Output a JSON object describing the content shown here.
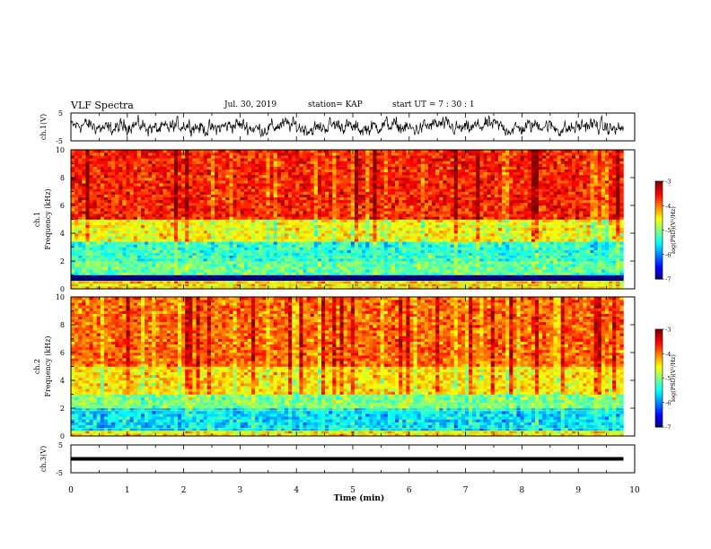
{
  "header": {
    "title": "VLF Spectra",
    "date": "Jul. 30, 2019",
    "station": "station= KAP",
    "start": "start UT = 7 : 30 : 1"
  },
  "chart_data": [
    {
      "type": "line",
      "ylabel": "ch.1(V)",
      "ylim": [
        -5,
        5
      ],
      "yticks": [
        "5",
        "-5"
      ],
      "x_range_min": [
        0,
        9.8
      ],
      "description_values": "dense noisy waveform oscillating roughly between -4 and 4 V"
    },
    {
      "type": "heatmap",
      "ylabel_channel": "ch.1",
      "ylabel": "Frequency (kHz)",
      "ylim": [
        0,
        10
      ],
      "yticks": [
        "0",
        "2",
        "4",
        "6",
        "8",
        "10"
      ],
      "x_range_min": [
        0,
        9.8
      ],
      "colorbar": {
        "label": "log(PSD)(V²/Hz)",
        "range": [
          -7,
          -3
        ],
        "ticks": [
          "-3",
          "-4",
          "-5",
          "-6",
          "-7"
        ]
      },
      "bands_log_psd": [
        {
          "f": [
            0,
            0.6
          ],
          "level": -4.3
        },
        {
          "f": [
            0.6,
            1.0
          ],
          "level": -7.5
        },
        {
          "f": [
            1.0,
            2.0
          ],
          "level": -5.1
        },
        {
          "f": [
            2.0,
            3.4
          ],
          "level": -5.3
        },
        {
          "f": [
            3.4,
            5.0
          ],
          "level": -4.5
        },
        {
          "f": [
            5.0,
            10.0
          ],
          "level": -3.6
        }
      ]
    },
    {
      "type": "heatmap",
      "ylabel_channel": "ch.2",
      "ylabel": "Frequency (kHz)",
      "ylim": [
        0,
        10
      ],
      "yticks": [
        "0",
        "2",
        "4",
        "6",
        "8",
        "10"
      ],
      "x_range_min": [
        0,
        9.8
      ],
      "colorbar": {
        "label": "log(PSD)(V²/Hz)",
        "range": [
          -7,
          -3
        ],
        "ticks": [
          "-3",
          "-4",
          "-5",
          "-6",
          "-7"
        ]
      },
      "bands_log_psd": [
        {
          "f": [
            0,
            0.4
          ],
          "level": -4.4
        },
        {
          "f": [
            0.4,
            2.0
          ],
          "level": -5.6
        },
        {
          "f": [
            2.0,
            3.0
          ],
          "level": -5.0
        },
        {
          "f": [
            3.0,
            5.0
          ],
          "level": -4.4
        },
        {
          "f": [
            5.0,
            10.0
          ],
          "level": -3.9
        }
      ]
    },
    {
      "type": "line",
      "ylabel": "ch.3(V)",
      "ylim": [
        -5,
        5
      ],
      "yticks": [
        "5",
        "-5"
      ],
      "x_range_min": [
        0,
        9.8
      ],
      "values_constant": 0
    }
  ],
  "xaxis": {
    "label": "Time (min)",
    "range": [
      0,
      10
    ],
    "ticks": [
      "0",
      "1",
      "2",
      "3",
      "4",
      "5",
      "6",
      "7",
      "8",
      "9",
      "10"
    ]
  }
}
